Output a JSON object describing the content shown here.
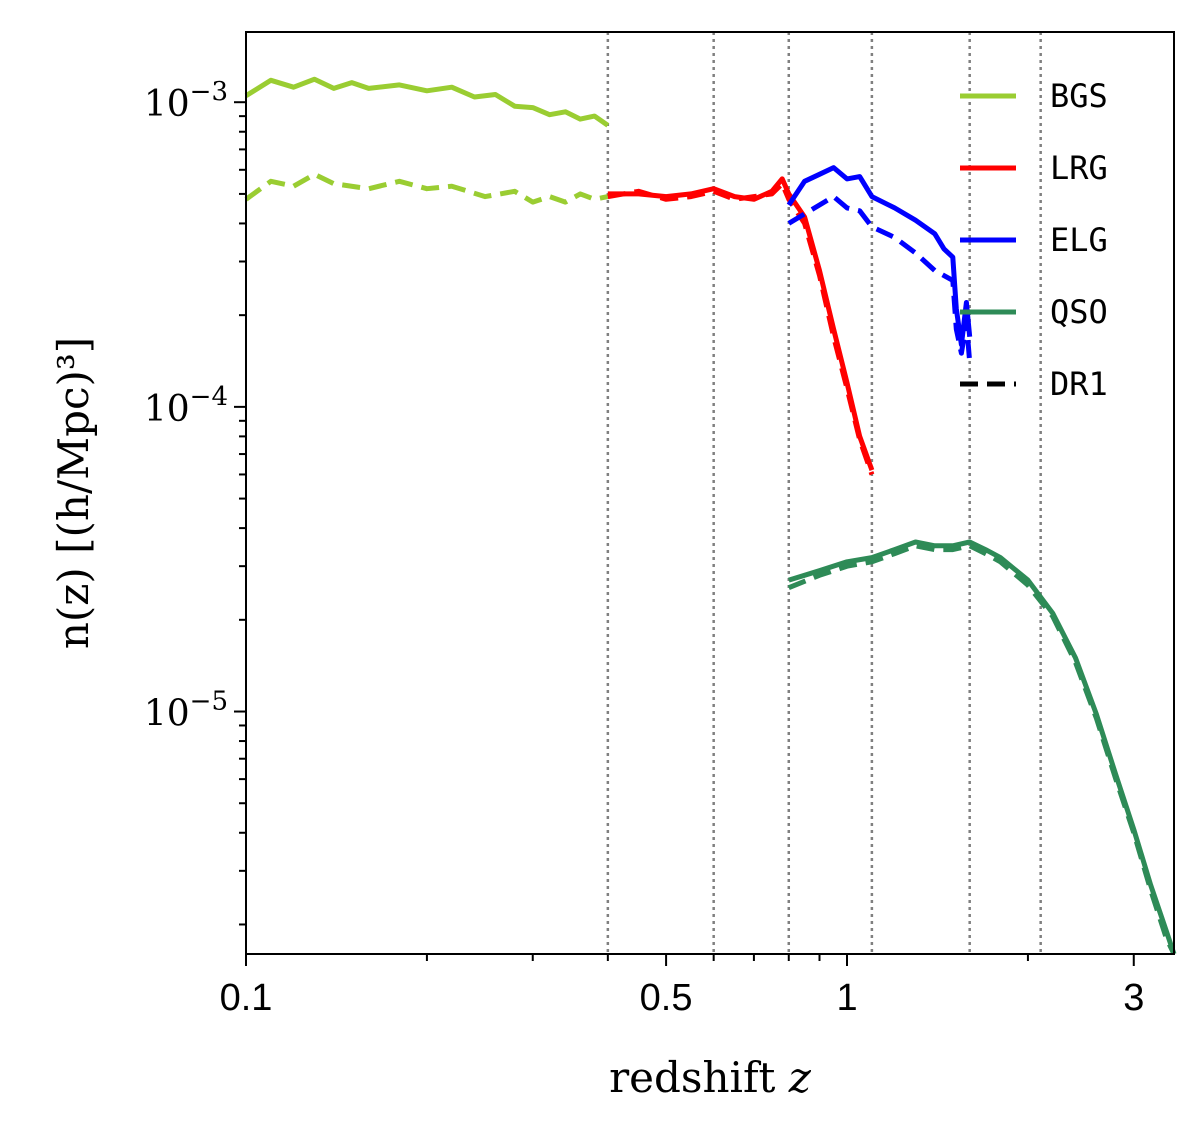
{
  "chart_data": {
    "type": "line",
    "title": "",
    "xlabel": "redshift",
    "xlabel_var": "z",
    "ylabel": "n(z) [(h/Mpc)³]",
    "xscale": "log",
    "yscale": "log",
    "xlim": [
      0.1,
      3.5
    ],
    "ylim": [
      1.6e-06,
      0.0017
    ],
    "xticks": [
      {
        "value": 0.1,
        "label": "0.1"
      },
      {
        "value": 0.5,
        "label": "0.5"
      },
      {
        "value": 1,
        "label": "1"
      },
      {
        "value": 3,
        "label": "3"
      }
    ],
    "yticks": [
      {
        "value": 1e-05,
        "base": "10",
        "exp": "−5"
      },
      {
        "value": 0.0001,
        "base": "10",
        "exp": "−4"
      },
      {
        "value": 0.001,
        "base": "10",
        "exp": "−3"
      }
    ],
    "vlines": [
      0.4,
      0.6,
      0.8,
      1.1,
      1.6,
      2.1
    ],
    "legend": {
      "placement": "top-right",
      "entries": [
        {
          "label": "BGS",
          "color": "#9acd32",
          "style": "solid"
        },
        {
          "label": "LRG",
          "color": "#ff0000",
          "style": "solid"
        },
        {
          "label": "ELG",
          "color": "#0000ff",
          "style": "solid"
        },
        {
          "label": "QSO",
          "color": "#2e8b57",
          "style": "solid"
        },
        {
          "label": "DR1",
          "color": "#000000",
          "style": "dashed"
        }
      ]
    },
    "series": [
      {
        "name": "BGS",
        "color": "#9acd32",
        "style": "solid",
        "x": [
          0.1,
          0.11,
          0.12,
          0.13,
          0.14,
          0.15,
          0.16,
          0.18,
          0.2,
          0.22,
          0.24,
          0.26,
          0.28,
          0.3,
          0.32,
          0.34,
          0.36,
          0.38,
          0.4
        ],
        "y": [
          0.00105,
          0.00118,
          0.00112,
          0.00119,
          0.00111,
          0.00116,
          0.00111,
          0.00114,
          0.00109,
          0.00112,
          0.00104,
          0.00106,
          0.00097,
          0.00096,
          0.00091,
          0.00093,
          0.00088,
          0.0009,
          0.00084
        ]
      },
      {
        "name": "BGS",
        "color": "#9acd32",
        "style": "dashed",
        "x": [
          0.1,
          0.11,
          0.12,
          0.13,
          0.14,
          0.16,
          0.18,
          0.2,
          0.22,
          0.25,
          0.28,
          0.3,
          0.32,
          0.34,
          0.36,
          0.38,
          0.4
        ],
        "y": [
          0.00048,
          0.00055,
          0.00053,
          0.00058,
          0.00054,
          0.00052,
          0.00055,
          0.00052,
          0.00053,
          0.00049,
          0.00051,
          0.00047,
          0.00049,
          0.00047,
          0.0005,
          0.00048,
          0.00049
        ]
      },
      {
        "name": "LRG",
        "color": "#ff0000",
        "style": "solid",
        "x": [
          0.4,
          0.45,
          0.5,
          0.55,
          0.6,
          0.65,
          0.7,
          0.75,
          0.78,
          0.8,
          0.85,
          0.9,
          0.95,
          1.0,
          1.05,
          1.1
        ],
        "y": [
          0.0005,
          0.0005,
          0.00049,
          0.0005,
          0.00052,
          0.00049,
          0.00048,
          0.00051,
          0.00056,
          0.0005,
          0.00042,
          0.00028,
          0.00018,
          0.00012,
          8e-05,
          6.2e-05
        ]
      },
      {
        "name": "LRG",
        "color": "#ff0000",
        "style": "dashed",
        "x": [
          0.4,
          0.45,
          0.5,
          0.55,
          0.6,
          0.65,
          0.7,
          0.75,
          0.78,
          0.8,
          0.85,
          0.9,
          0.95,
          1.0,
          1.05,
          1.1
        ],
        "y": [
          0.00049,
          0.00051,
          0.00048,
          0.00049,
          0.00051,
          0.00048,
          0.00049,
          0.0005,
          0.00054,
          0.00048,
          0.0004,
          0.00027,
          0.00017,
          0.000115,
          7.8e-05,
          6e-05
        ]
      },
      {
        "name": "ELG",
        "color": "#0000ff",
        "style": "solid",
        "x": [
          0.8,
          0.85,
          0.9,
          0.95,
          1.0,
          1.05,
          1.1,
          1.2,
          1.3,
          1.4,
          1.45,
          1.5,
          1.52,
          1.55,
          1.58,
          1.6
        ],
        "y": [
          0.00046,
          0.00055,
          0.00058,
          0.00061,
          0.00056,
          0.00057,
          0.00049,
          0.00045,
          0.00041,
          0.00037,
          0.00033,
          0.00031,
          0.00021,
          0.00016,
          0.00022,
          0.00017
        ]
      },
      {
        "name": "ELG",
        "color": "#0000ff",
        "style": "dashed",
        "x": [
          0.8,
          0.85,
          0.9,
          0.95,
          1.0,
          1.05,
          1.1,
          1.2,
          1.3,
          1.4,
          1.5,
          1.52,
          1.55,
          1.58,
          1.6
        ],
        "y": [
          0.0004,
          0.00043,
          0.00046,
          0.00049,
          0.00045,
          0.00044,
          0.00039,
          0.00036,
          0.00032,
          0.00028,
          0.00026,
          0.00018,
          0.00015,
          0.00019,
          0.00014
        ]
      },
      {
        "name": "QSO",
        "color": "#2e8b57",
        "style": "solid",
        "x": [
          0.8,
          0.9,
          1.0,
          1.1,
          1.2,
          1.3,
          1.4,
          1.5,
          1.6,
          1.7,
          1.8,
          2.0,
          2.2,
          2.4,
          2.6,
          2.8,
          3.0,
          3.2,
          3.4,
          3.5
        ],
        "y": [
          2.7e-05,
          2.9e-05,
          3.1e-05,
          3.2e-05,
          3.4e-05,
          3.6e-05,
          3.5e-05,
          3.5e-05,
          3.6e-05,
          3.4e-05,
          3.2e-05,
          2.7e-05,
          2.1e-05,
          1.5e-05,
          9.8e-06,
          6.2e-06,
          4.1e-06,
          2.7e-06,
          1.9e-06,
          1.6e-06
        ]
      },
      {
        "name": "QSO",
        "color": "#2e8b57",
        "style": "dashed",
        "x": [
          0.8,
          0.9,
          1.0,
          1.1,
          1.2,
          1.3,
          1.4,
          1.5,
          1.6,
          1.7,
          1.8,
          2.0,
          2.2,
          2.4,
          2.6,
          2.8,
          3.0,
          3.2,
          3.4,
          3.5
        ],
        "y": [
          2.55e-05,
          2.8e-05,
          3e-05,
          3.1e-05,
          3.3e-05,
          3.5e-05,
          3.4e-05,
          3.4e-05,
          3.5e-05,
          3.3e-05,
          3.1e-05,
          2.6e-05,
          2.05e-05,
          1.45e-05,
          9.5e-06,
          6e-06,
          4e-06,
          2.6e-06,
          1.8e-06,
          1.6e-06
        ]
      }
    ]
  }
}
